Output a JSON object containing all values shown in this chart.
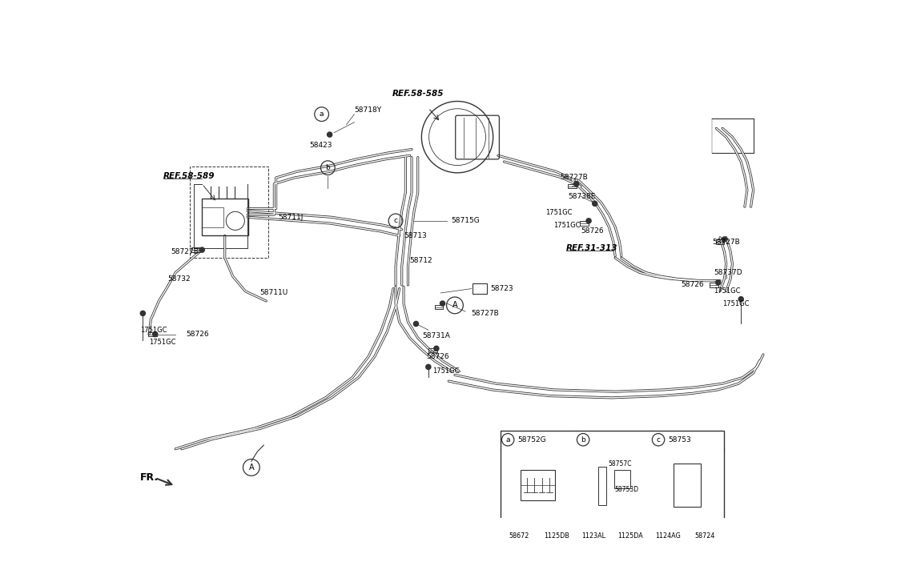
{
  "bg_color": "#ffffff",
  "line_color": "#333333",
  "text_color": "#000000",
  "fig_width": 11.45,
  "fig_height": 7.27,
  "parts_table_1_headers_a": "a",
  "parts_table_1_headers_b": "b",
  "parts_table_1_headers_c": "c",
  "parts_table_1_part_a": "58752G",
  "parts_table_1_part_b": "",
  "parts_table_1_part_c": "58753",
  "parts_table_1_label1": "58757C",
  "parts_table_1_label2": "58753D",
  "parts_table_2_headers": [
    "58672",
    "1125DB",
    "1123AL",
    "1125DA",
    "1124AG",
    "58724"
  ]
}
